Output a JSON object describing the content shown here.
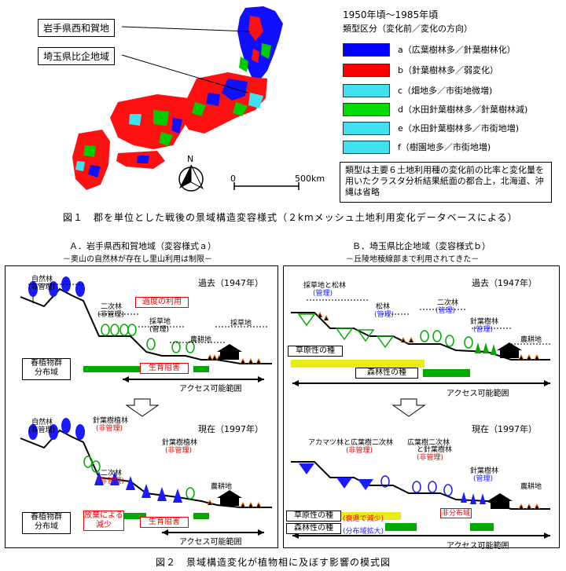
{
  "figure1": {
    "callout_iwate": "岩手県西和賀地",
    "callout_saitama": "埼玉県比企地域",
    "north_label": "N",
    "scale_zero": "0",
    "scale_end": "500km",
    "legend_title": "1950年頃～1985年頃",
    "legend_subtitle": "類型区分（変化前／変化の方向）",
    "legend": [
      {
        "code": "a",
        "label": "a（広葉樹林多／針葉樹林化）",
        "color": "#0000ff"
      },
      {
        "code": "b",
        "label": "b（針葉樹林多／弱変化）",
        "color": "#ff0000"
      },
      {
        "code": "c",
        "label": "c（畑地多／市街地微増)",
        "color": "#40e0f0"
      },
      {
        "code": "d",
        "label": "d（水田針葉樹林多／針葉樹林減)",
        "color": "#00dd00"
      },
      {
        "code": "e",
        "label": "e（水田針葉樹林多／市街地増)",
        "color": "#40e0f0"
      },
      {
        "code": "f",
        "label": "f（樹園地多／市街地増)",
        "color": "#40e0f0"
      }
    ],
    "note": "類型は主要６土地利用種の変化前の比率と変化量を用いたクラスタ分析結果紙面の都合上，北海道、沖縄は省略",
    "caption": "図１　郡を単位とした戦後の景域構造変容様式（２kmメッシュ土地利用変化データベースによる）"
  },
  "panelA": {
    "title": "Ａ．岩手県西和賀地域（変容様式ａ）",
    "subtitle": "－奥山の自然林が存在し里山利用は制限－",
    "past": {
      "era": "過去（1947年）",
      "natural_forest": "自然林",
      "natural_forest_status": "(非管理)",
      "secondary_forest": "二次林",
      "secondary_status": "(非管理)",
      "overuse": "過度の利用",
      "grass1": "採草地",
      "grass1_status": "(管理)",
      "farmland": "農耕地",
      "grass2": "採草地",
      "spring_plants": "春植物群",
      "distribution": "分布域",
      "growth_inhibition": "生育阻害",
      "access": "アクセス可能範囲"
    },
    "present": {
      "era": "現在（1997年）",
      "natural_forest": "自然林",
      "natural_forest_status": "(非管理)",
      "conifer1": "針葉樹植林",
      "conifer1_status": "(非管理)",
      "conifer2": "針葉樹植林",
      "conifer2_status": "(非管理)",
      "secondary_forest": "二次林",
      "secondary_status": "(非管理)",
      "farmland": "農耕地",
      "spring_plants": "春植物群",
      "distribution": "分布域",
      "decline": "放棄による",
      "decline2": "減少",
      "growth_inhibition": "生育阻害",
      "access": "アクセス可能範囲"
    }
  },
  "panelB": {
    "title": "Ｂ．埼玉県比企地域（変容様式ｂ）",
    "subtitle": "－丘陵地稜線部まで利用されてきた－",
    "past": {
      "era": "過去（1947年）",
      "grass_pine": "採草地と松林",
      "grass_pine_status": "(管理)",
      "pine": "松林",
      "pine_status": "(管理)",
      "secondary_forest": "二次林",
      "secondary_status": "(管理)",
      "conifer": "針葉樹林",
      "conifer_status": "(管理)",
      "farmland": "農耕地",
      "grassland_species": "草原性の種",
      "forest_species": "森林性の種",
      "access": "アクセス可能範囲"
    },
    "present": {
      "era": "現在（1997年）",
      "red_pine": "アカマツ林と広葉樹二次林",
      "red_pine_status": "(非管理)",
      "broadleaf": "広葉樹二次林",
      "broadleaf2": "と針葉樹林",
      "broadleaf_status": "(非管理)",
      "conifer": "針葉樹林",
      "conifer_status": "(管理)",
      "farmland": "農耕地",
      "grassland_species": "草原性の種",
      "grassland_note": "(衰退で減少)",
      "forest_species": "森林性の種",
      "forest_note": "(分布域拡大)",
      "unknown_dist": "非分布域",
      "access": "アクセス可能範囲"
    }
  },
  "caption2": "図２　景域構造変化が植物相に及ぼす影響の模式図"
}
